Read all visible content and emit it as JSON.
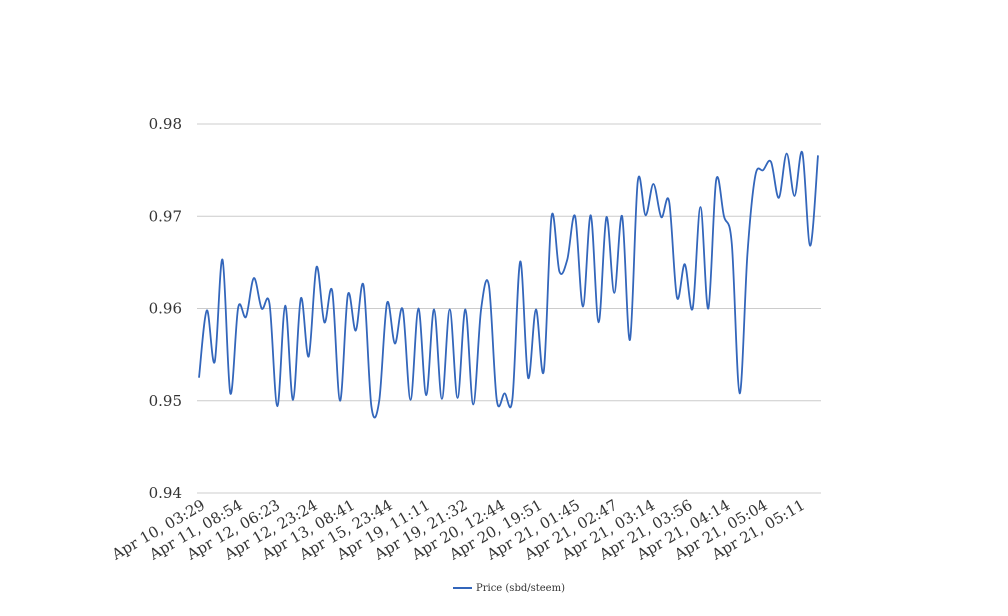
{
  "chart_data": {
    "type": "line",
    "title": "",
    "xlabel": "",
    "ylabel": "",
    "ylim": [
      0.94,
      0.98
    ],
    "y_ticks": [
      "0.94",
      "0.95",
      "0.96",
      "0.97",
      "0.98"
    ],
    "y_tick_values": [
      0.94,
      0.95,
      0.96,
      0.97,
      0.98
    ],
    "x_tick_labels": [
      "Apr 10, 03:29",
      "Apr 11, 08:54",
      "Apr 12, 06:23",
      "Apr 12, 23:24",
      "Apr 13, 08:41",
      "Apr 15, 23:44",
      "Apr 19, 11:11",
      "Apr 19, 21:32",
      "Apr 20, 12:44",
      "Apr 20, 19:51",
      "Apr 21, 01:45",
      "Apr 21, 02:47",
      "Apr 21, 03:14",
      "Apr 21, 03:56",
      "Apr 21, 04:14",
      "Apr 21, 05:04",
      "Apr 21, 05:11"
    ],
    "grid": true,
    "legend_position": "bottom-center",
    "series": [
      {
        "name": "Price (sbd/steem)",
        "color": "#3366bb",
        "values": [
          0.9525,
          0.9598,
          0.9542,
          0.9653,
          0.9508,
          0.9601,
          0.9591,
          0.9633,
          0.96,
          0.9605,
          0.9494,
          0.9603,
          0.9501,
          0.9611,
          0.9548,
          0.9645,
          0.9585,
          0.9619,
          0.95,
          0.9615,
          0.9576,
          0.9625,
          0.9494,
          0.95,
          0.9606,
          0.9562,
          0.9599,
          0.9501,
          0.96,
          0.9506,
          0.9599,
          0.9502,
          0.9599,
          0.9503,
          0.9599,
          0.9496,
          0.9599,
          0.9625,
          0.9501,
          0.9508,
          0.9502,
          0.9651,
          0.9525,
          0.9599,
          0.9532,
          0.97,
          0.964,
          0.9653,
          0.97,
          0.9602,
          0.9701,
          0.9585,
          0.9699,
          0.9617,
          0.97,
          0.9566,
          0.9738,
          0.9701,
          0.9735,
          0.9699,
          0.9716,
          0.9612,
          0.9648,
          0.96,
          0.971,
          0.96,
          0.9739,
          0.97,
          0.967,
          0.9508,
          0.966,
          0.9744,
          0.975,
          0.9759,
          0.972,
          0.9768,
          0.9722,
          0.9769,
          0.9668,
          0.9766
        ]
      }
    ]
  }
}
